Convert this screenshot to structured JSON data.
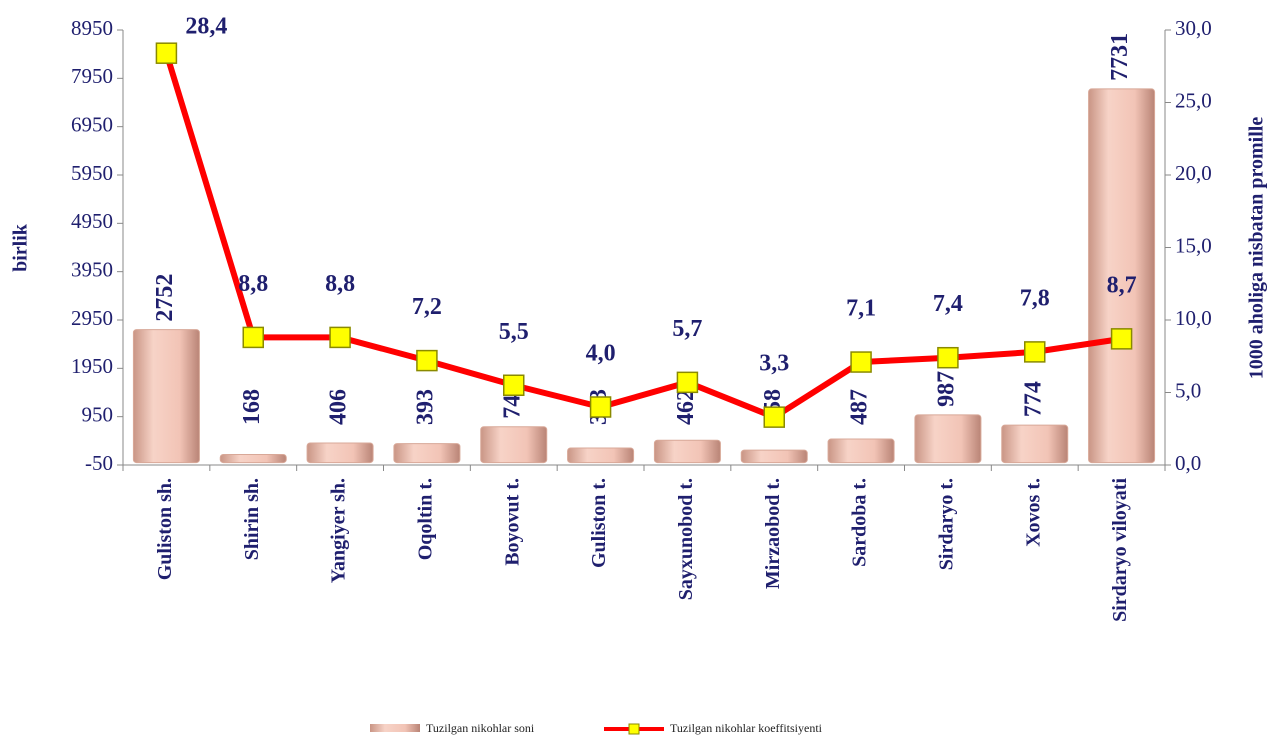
{
  "chart_data": {
    "type": "bar_line",
    "categories": [
      "Guliston sh.",
      "Shirin sh.",
      "Yangiyer sh.",
      "Oqoltin t.",
      "Boyovut t.",
      "Guliston t.",
      "Sayxunobod t.",
      "Mirzaobod t.",
      "Sardoba t.",
      "Sirdaryo t.",
      "Xovos t.",
      "Sirdaryo viloyati"
    ],
    "series": [
      {
        "name": "Tuzilgan nikohlar soni",
        "type": "bar",
        "color": "#f2c4b6",
        "values": [
          2752,
          168,
          406,
          393,
          741,
          303,
          462,
          258,
          487,
          987,
          774,
          7731
        ]
      },
      {
        "name": "Tuzilgan nikohlar koeffitsiyenti",
        "type": "line",
        "axis": "y2",
        "color": "#ff0000",
        "marker_color": "#ffff00",
        "values": [
          28.4,
          8.8,
          8.8,
          7.2,
          5.5,
          4.0,
          5.7,
          3.3,
          7.1,
          7.4,
          7.8,
          8.7
        ],
        "value_labels": [
          "28,4",
          "8,8",
          "8,8",
          "7,2",
          "5,5",
          "4,0",
          "5,7",
          "3,3",
          "7,1",
          "7,4",
          "7,8",
          "8,7"
        ]
      }
    ],
    "ylabel": "birlik",
    "y2label": "1000 aholiga nisbatan promille",
    "ylim": [
      -50,
      8950
    ],
    "yticks": [
      -50,
      950,
      1950,
      2950,
      3950,
      4950,
      5950,
      6950,
      7950,
      8950
    ],
    "y2lim": [
      0,
      30
    ],
    "y2ticks": [
      {
        "value": 0,
        "label": "0,0"
      },
      {
        "value": 5,
        "label": "5,0"
      },
      {
        "value": 10,
        "label": "10,0"
      },
      {
        "value": 15,
        "label": "15,0"
      },
      {
        "value": 20,
        "label": "20,0"
      },
      {
        "value": 25,
        "label": "25,0"
      },
      {
        "value": 30,
        "label": "30,0"
      }
    ],
    "legend": "bottom"
  }
}
